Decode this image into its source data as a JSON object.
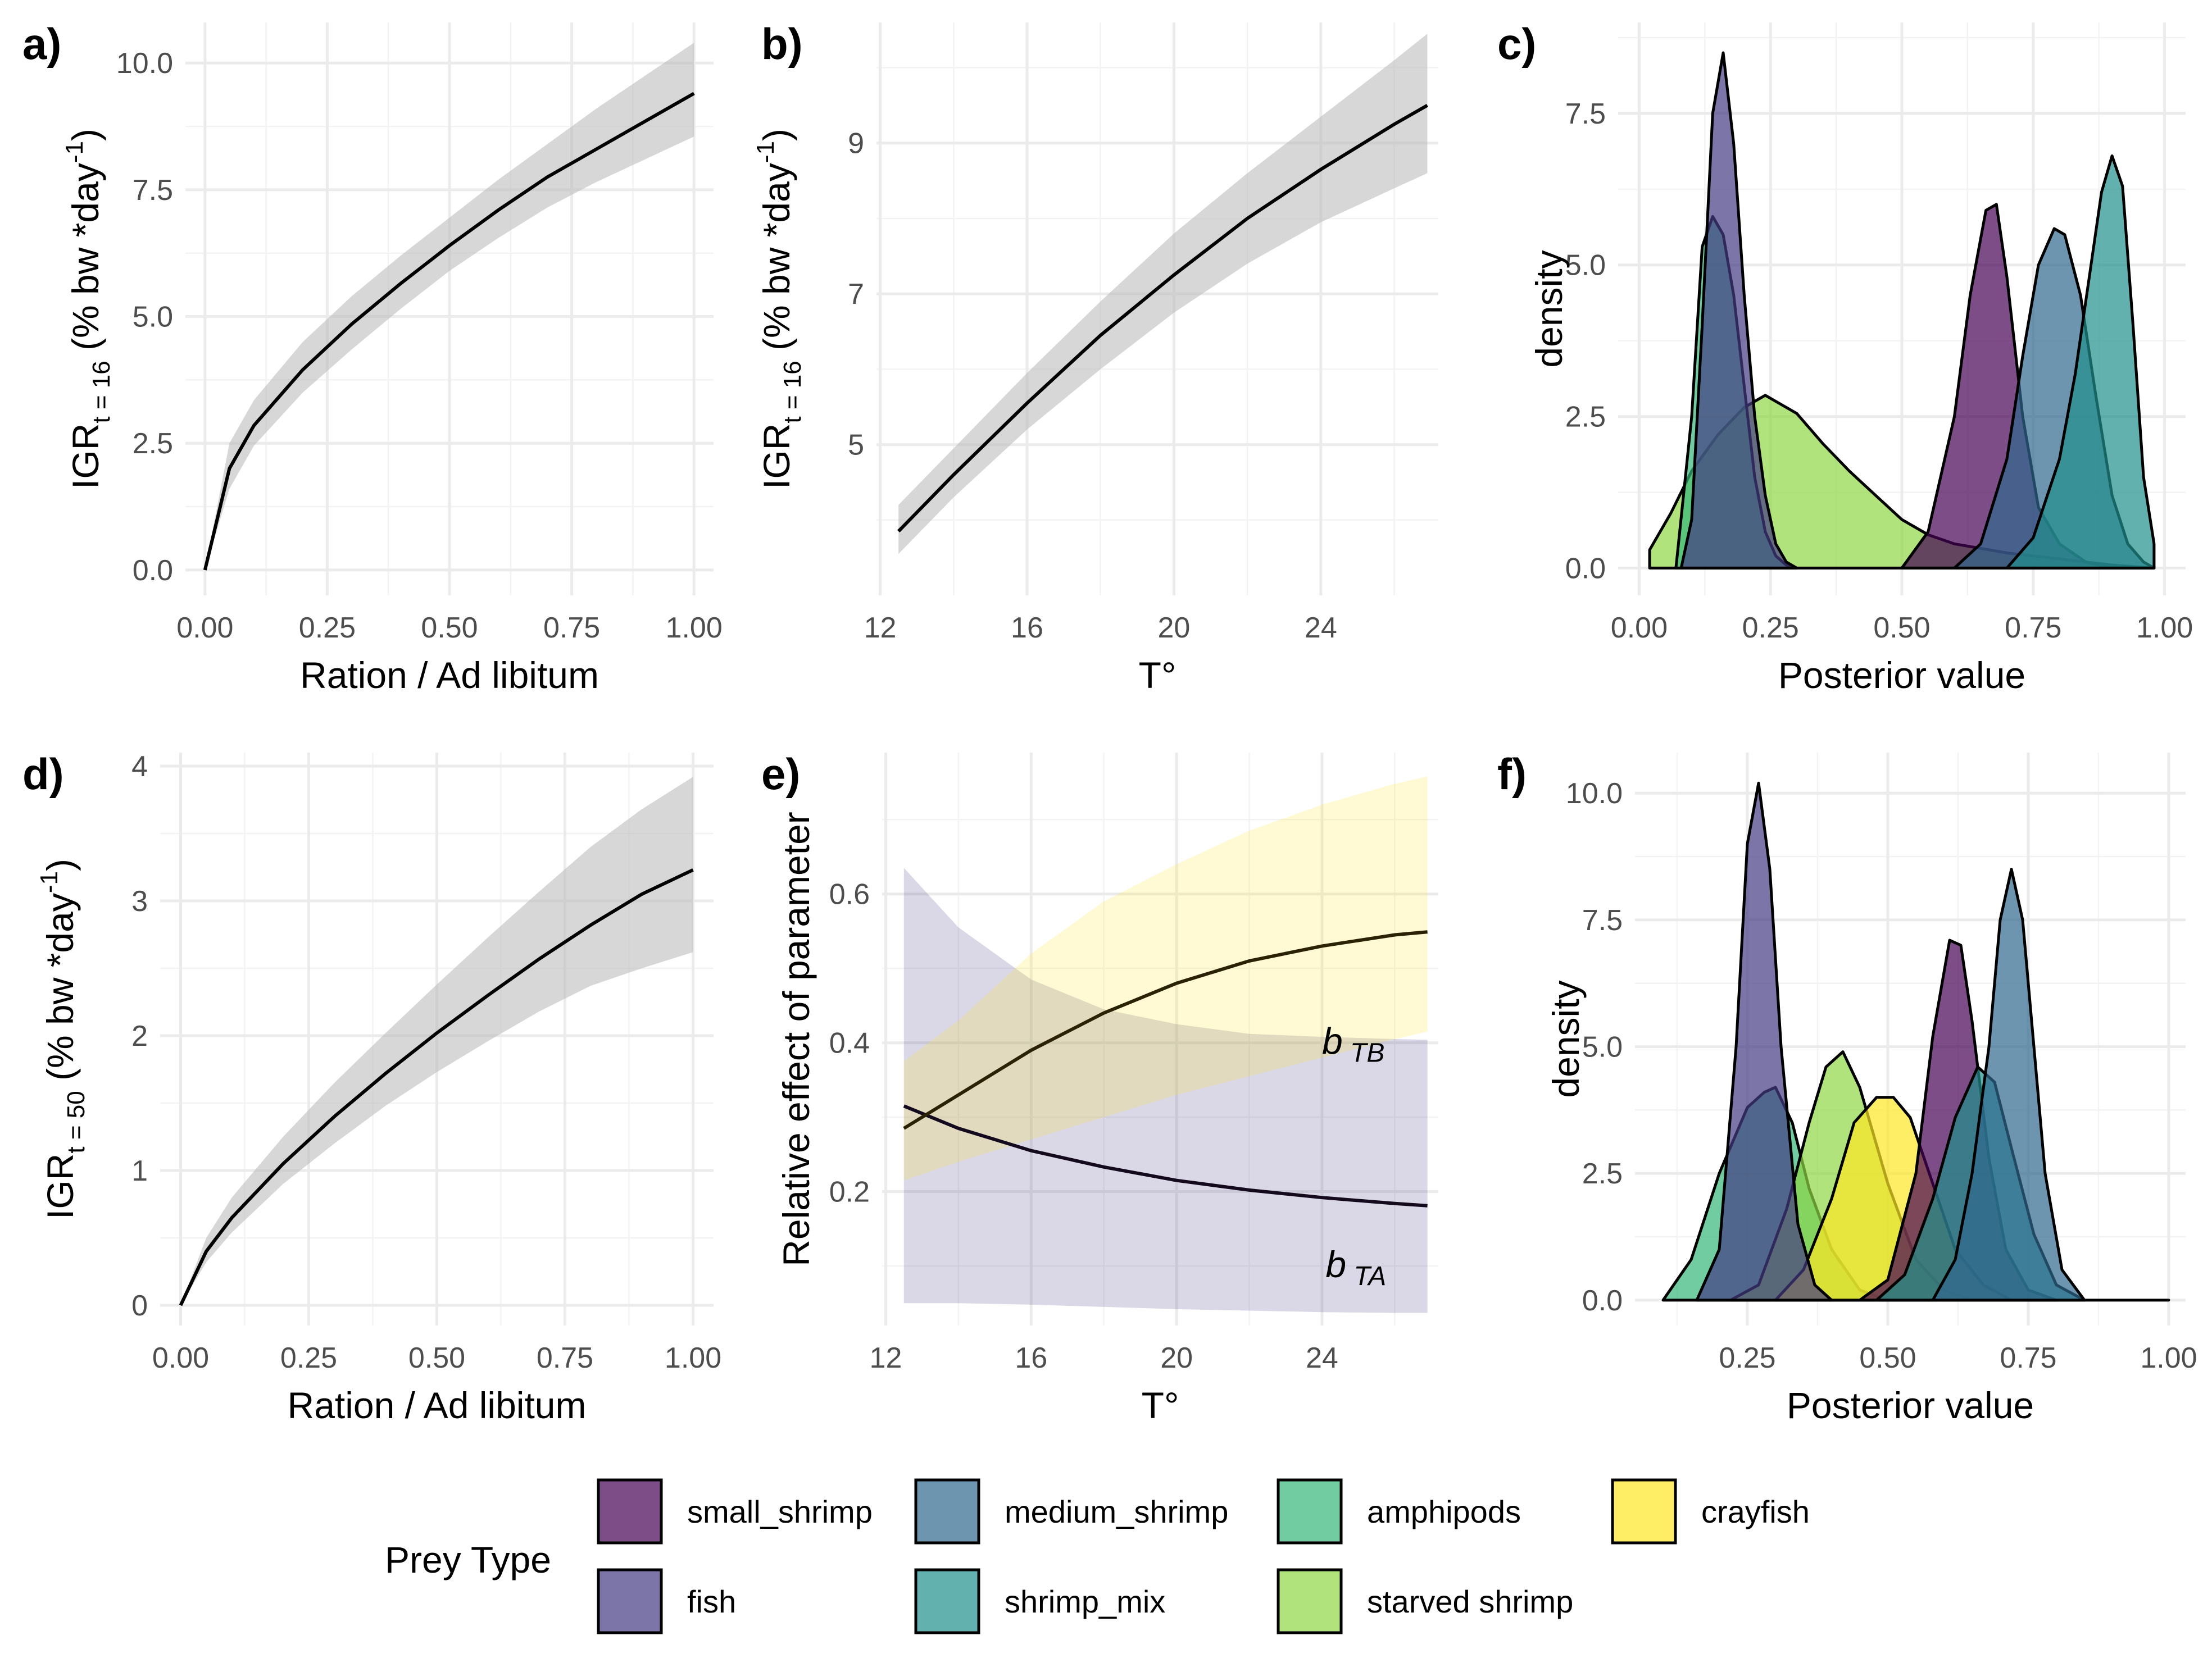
{
  "legend": {
    "title": "Prey Type",
    "items": [
      {
        "label": "small_shrimp",
        "color": "#440154"
      },
      {
        "label": "medium_shrimp",
        "color": "#31688e"
      },
      {
        "label": "amphipods",
        "color": "#35b779"
      },
      {
        "label": "crayfish",
        "color": "#fde725"
      },
      {
        "label": "fish",
        "color": "#443a83"
      },
      {
        "label": "shrimp_mix",
        "color": "#21908c"
      },
      {
        "label": "starved shrimp",
        "color": "#8fd744"
      }
    ]
  },
  "chart_data": [
    {
      "panel": "a)",
      "type": "line",
      "xlabel": "Ration / Ad libitum",
      "ylabel": "IGR",
      "ylabel_sub": "t = 16",
      "ylabel_rest": " (% bw *day",
      "ylabel_sup": "-1",
      "ylabel_end": ")",
      "xlim": [
        -0.04,
        1.04
      ],
      "ylim": [
        -0.5,
        10.8
      ],
      "xticks": [
        0,
        0.25,
        0.5,
        0.75,
        1
      ],
      "xtick_labels": [
        "0.00",
        "0.25",
        "0.50",
        "0.75",
        "1.00"
      ],
      "yticks": [
        0,
        2.5,
        5,
        7.5,
        10
      ],
      "ytick_labels": [
        "0.0",
        "2.5",
        "5.0",
        "7.5",
        "10.0"
      ],
      "x": [
        0,
        0.05,
        0.1,
        0.2,
        0.3,
        0.4,
        0.5,
        0.6,
        0.7,
        0.8,
        0.9,
        1.0
      ],
      "y": [
        0,
        2.0,
        2.85,
        3.95,
        4.85,
        5.65,
        6.4,
        7.1,
        7.75,
        8.3,
        8.85,
        9.4
      ],
      "lower": [
        0,
        1.6,
        2.45,
        3.5,
        4.35,
        5.15,
        5.9,
        6.55,
        7.15,
        7.65,
        8.1,
        8.55
      ],
      "upper": [
        0,
        2.5,
        3.35,
        4.5,
        5.4,
        6.2,
        6.95,
        7.7,
        8.4,
        9.1,
        9.75,
        10.4
      ]
    },
    {
      "panel": "b)",
      "type": "line",
      "xlabel": "T°",
      "ylabel": "IGR",
      "ylabel_sub": "t = 16",
      "ylabel_rest": " (% bw *day",
      "ylabel_sup": "-1",
      "ylabel_end": ")",
      "xlim": [
        11.9,
        27.2
      ],
      "ylim": [
        3.0,
        10.6
      ],
      "xticks": [
        12,
        16,
        20,
        24
      ],
      "xtick_labels": [
        "12",
        "16",
        "20",
        "24"
      ],
      "yticks": [
        5,
        7,
        9
      ],
      "ytick_labels": [
        "5",
        "7",
        "9"
      ],
      "x": [
        12.5,
        14,
        16,
        18,
        20,
        22,
        24,
        26,
        26.9
      ],
      "y": [
        3.85,
        4.6,
        5.55,
        6.45,
        7.25,
        8.0,
        8.65,
        9.25,
        9.5
      ],
      "lower": [
        3.55,
        4.3,
        5.2,
        6.0,
        6.75,
        7.4,
        7.95,
        8.4,
        8.6
      ],
      "upper": [
        4.2,
        4.95,
        5.95,
        6.9,
        7.8,
        8.6,
        9.35,
        10.1,
        10.45
      ]
    },
    {
      "panel": "c)",
      "type": "area",
      "xlabel": "Posterior value",
      "ylabel": "density",
      "xlim": [
        -0.04,
        1.04
      ],
      "ylim": [
        -0.45,
        9.0
      ],
      "xticks": [
        0,
        0.25,
        0.5,
        0.75,
        1
      ],
      "xtick_labels": [
        "0.00",
        "0.25",
        "0.50",
        "0.75",
        "1.00"
      ],
      "yticks": [
        0,
        2.5,
        5,
        7.5
      ],
      "ytick_labels": [
        "0.0",
        "2.5",
        "5.0",
        "7.5"
      ],
      "series": [
        {
          "color_key": 6,
          "x": [
            0.02,
            0.06,
            0.1,
            0.15,
            0.2,
            0.24,
            0.3,
            0.35,
            0.4,
            0.45,
            0.5,
            0.55,
            0.6,
            0.7,
            0.8,
            0.9,
            0.98
          ],
          "y": [
            0.3,
            0.9,
            1.6,
            2.2,
            2.65,
            2.85,
            2.55,
            2.05,
            1.6,
            1.2,
            0.8,
            0.55,
            0.4,
            0.25,
            0.15,
            0.05,
            0.0
          ]
        },
        {
          "color_key": 2,
          "x": [
            0.07,
            0.1,
            0.12,
            0.14,
            0.16,
            0.18,
            0.2,
            0.22,
            0.24,
            0.26,
            0.28,
            0.3
          ],
          "y": [
            0.0,
            2.5,
            5.3,
            5.8,
            5.5,
            4.5,
            3.0,
            1.5,
            0.6,
            0.2,
            0.05,
            0.0
          ]
        },
        {
          "color_key": 4,
          "x": [
            0.08,
            0.1,
            0.12,
            0.14,
            0.16,
            0.18,
            0.2,
            0.22,
            0.24,
            0.26,
            0.28,
            0.3
          ],
          "y": [
            0.0,
            0.8,
            4.0,
            7.5,
            8.5,
            7.0,
            4.5,
            2.5,
            1.2,
            0.4,
            0.1,
            0.0
          ]
        },
        {
          "color_key": 0,
          "x": [
            0.5,
            0.55,
            0.6,
            0.63,
            0.66,
            0.68,
            0.7,
            0.73,
            0.76,
            0.8,
            0.85,
            0.9
          ],
          "y": [
            0.0,
            0.6,
            2.5,
            4.5,
            5.9,
            6.0,
            4.8,
            2.5,
            1.0,
            0.4,
            0.1,
            0.0
          ]
        },
        {
          "color_key": 1,
          "x": [
            0.6,
            0.65,
            0.7,
            0.73,
            0.76,
            0.79,
            0.81,
            0.84,
            0.87,
            0.9,
            0.93,
            0.96,
            0.98
          ],
          "y": [
            0.0,
            0.4,
            1.8,
            3.5,
            5.0,
            5.6,
            5.5,
            4.5,
            2.8,
            1.2,
            0.4,
            0.1,
            0.0
          ]
        },
        {
          "color_key": 5,
          "x": [
            0.7,
            0.75,
            0.8,
            0.83,
            0.86,
            0.88,
            0.9,
            0.92,
            0.94,
            0.96,
            0.98
          ],
          "y": [
            0.0,
            0.5,
            1.8,
            3.2,
            5.0,
            6.2,
            6.8,
            6.3,
            4.0,
            1.5,
            0.4
          ]
        }
      ]
    },
    {
      "panel": "d)",
      "type": "line",
      "xlabel": "Ration / Ad libitum",
      "ylabel": "IGR",
      "ylabel_sub": "t = 50",
      "ylabel_rest": " (% bw *day",
      "ylabel_sup": "-1",
      "ylabel_end": ")",
      "xlim": [
        -0.04,
        1.04
      ],
      "ylim": [
        -0.15,
        4.1
      ],
      "xticks": [
        0,
        0.25,
        0.5,
        0.75,
        1
      ],
      "xtick_labels": [
        "0.00",
        "0.25",
        "0.50",
        "0.75",
        "1.00"
      ],
      "yticks": [
        0,
        1,
        2,
        3,
        4
      ],
      "ytick_labels": [
        "0",
        "1",
        "2",
        "3",
        "4"
      ],
      "x": [
        0,
        0.05,
        0.1,
        0.2,
        0.3,
        0.4,
        0.5,
        0.6,
        0.7,
        0.8,
        0.9,
        1.0
      ],
      "y": [
        0,
        0.4,
        0.65,
        1.05,
        1.4,
        1.72,
        2.02,
        2.3,
        2.57,
        2.82,
        3.05,
        3.23
      ],
      "lower": [
        0,
        0.32,
        0.54,
        0.9,
        1.2,
        1.48,
        1.73,
        1.96,
        2.18,
        2.37,
        2.5,
        2.62
      ],
      "upper": [
        0,
        0.5,
        0.8,
        1.25,
        1.65,
        2.02,
        2.38,
        2.73,
        3.07,
        3.4,
        3.68,
        3.92
      ]
    },
    {
      "panel": "e)",
      "type": "line",
      "xlabel": "T°",
      "ylabel": "Relative effect of parameter",
      "xlim": [
        11.9,
        27.2
      ],
      "ylim": [
        0.02,
        0.79
      ],
      "xticks": [
        12,
        16,
        20,
        24
      ],
      "xtick_labels": [
        "12",
        "16",
        "20",
        "24"
      ],
      "yticks": [
        0.2,
        0.4,
        0.6
      ],
      "ytick_labels": [
        "0.2",
        "0.4",
        "0.6"
      ],
      "series": [
        {
          "name": "b",
          "name_sub": "TA",
          "color_key": 4,
          "x": [
            12.5,
            14,
            16,
            18,
            20,
            22,
            24,
            26,
            26.9
          ],
          "y": [
            0.315,
            0.285,
            0.255,
            0.233,
            0.215,
            0.202,
            0.192,
            0.184,
            0.181
          ],
          "lower": [
            0.05,
            0.05,
            0.048,
            0.045,
            0.042,
            0.04,
            0.038,
            0.037,
            0.037
          ],
          "upper": [
            0.635,
            0.555,
            0.485,
            0.445,
            0.425,
            0.412,
            0.408,
            0.405,
            0.404
          ]
        },
        {
          "name": "b",
          "name_sub": "TB",
          "color_key": 3,
          "x": [
            12.5,
            14,
            16,
            18,
            20,
            22,
            24,
            26,
            26.9
          ],
          "y": [
            0.285,
            0.33,
            0.39,
            0.44,
            0.48,
            0.51,
            0.53,
            0.545,
            0.549
          ],
          "lower": [
            0.215,
            0.24,
            0.27,
            0.3,
            0.33,
            0.355,
            0.38,
            0.405,
            0.415
          ],
          "upper": [
            0.375,
            0.43,
            0.52,
            0.59,
            0.64,
            0.685,
            0.72,
            0.748,
            0.758
          ]
        }
      ]
    },
    {
      "panel": "f)",
      "type": "area",
      "xlabel": "Posterior value",
      "ylabel": "density",
      "xlim": [
        0.05,
        1.03
      ],
      "ylim": [
        -0.5,
        10.8
      ],
      "xticks": [
        0.25,
        0.5,
        0.75,
        1
      ],
      "xtick_labels": [
        "0.25",
        "0.50",
        "0.75",
        "1.00"
      ],
      "yticks": [
        0,
        2.5,
        5,
        7.5,
        10
      ],
      "ytick_labels": [
        "0.0",
        "2.5",
        "5.0",
        "7.5",
        "10.0"
      ],
      "series": [
        {
          "color_key": 2,
          "x": [
            0.1,
            0.15,
            0.2,
            0.25,
            0.28,
            0.3,
            0.33,
            0.36,
            0.4,
            0.45,
            0.5
          ],
          "y": [
            0.0,
            0.8,
            2.5,
            3.8,
            4.1,
            4.2,
            3.5,
            2.2,
            1.0,
            0.2,
            0.0
          ]
        },
        {
          "color_key": 6,
          "x": [
            0.22,
            0.27,
            0.32,
            0.36,
            0.39,
            0.42,
            0.45,
            0.5,
            0.55,
            0.6,
            0.65
          ],
          "y": [
            0.0,
            0.3,
            1.8,
            3.5,
            4.6,
            4.9,
            4.2,
            2.3,
            0.8,
            0.2,
            0.0
          ]
        },
        {
          "color_key": 3,
          "x": [
            0.3,
            0.35,
            0.4,
            0.44,
            0.48,
            0.51,
            0.54,
            0.58,
            0.62,
            0.67,
            0.72
          ],
          "y": [
            0.0,
            0.6,
            2.0,
            3.5,
            4.0,
            4.0,
            3.6,
            2.3,
            1.0,
            0.3,
            0.0
          ]
        },
        {
          "color_key": 4,
          "x": [
            0.16,
            0.2,
            0.23,
            0.25,
            0.27,
            0.29,
            0.31,
            0.34,
            0.37,
            0.4
          ],
          "y": [
            0.0,
            1.0,
            5.0,
            9.0,
            10.2,
            8.5,
            5.0,
            1.5,
            0.3,
            0.0
          ]
        },
        {
          "color_key": 0,
          "x": [
            0.45,
            0.5,
            0.55,
            0.58,
            0.61,
            0.63,
            0.65,
            0.68,
            0.71,
            0.75,
            0.8
          ],
          "y": [
            0.0,
            0.4,
            2.5,
            5.2,
            7.1,
            7.0,
            5.5,
            2.8,
            1.0,
            0.2,
            0.0
          ]
        },
        {
          "color_key": 5,
          "x": [
            0.48,
            0.53,
            0.58,
            0.62,
            0.66,
            0.69,
            0.72,
            0.76,
            0.8,
            0.85
          ],
          "y": [
            0.0,
            0.5,
            2.0,
            3.6,
            4.6,
            4.3,
            3.0,
            1.3,
            0.3,
            0.0
          ]
        },
        {
          "color_key": 1,
          "x": [
            0.58,
            0.62,
            0.65,
            0.68,
            0.7,
            0.72,
            0.74,
            0.76,
            0.78,
            0.81,
            0.85,
            1.0
          ],
          "y": [
            0.0,
            0.8,
            2.5,
            5.0,
            7.5,
            8.5,
            7.5,
            5.0,
            2.5,
            0.6,
            0.0,
            0.0
          ]
        }
      ]
    }
  ]
}
